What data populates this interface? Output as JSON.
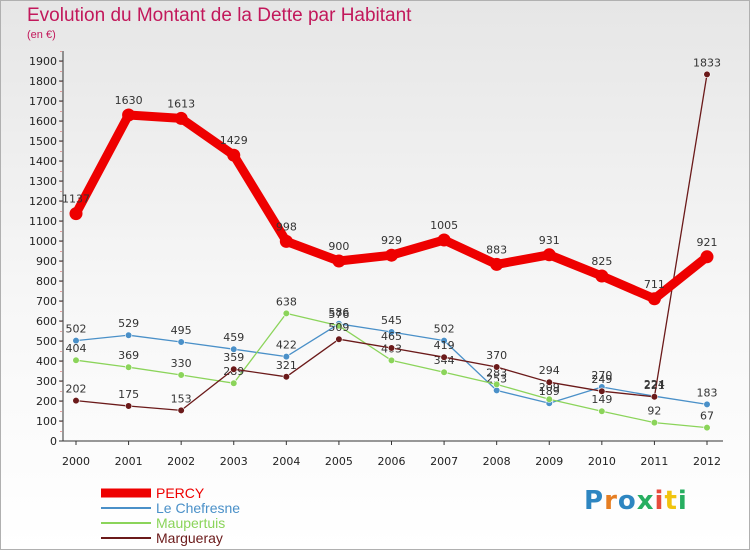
{
  "chart_data": {
    "type": "line",
    "title": "Evolution du Montant de la Dette par Habitant",
    "subtitle": "(en €)",
    "categories": [
      "2000",
      "2001",
      "2002",
      "2003",
      "2004",
      "2005",
      "2006",
      "2007",
      "2008",
      "2009",
      "2010",
      "2011",
      "2012"
    ],
    "ylim": [
      0,
      1900
    ],
    "yticks": [
      0,
      100,
      200,
      300,
      400,
      500,
      600,
      700,
      800,
      900,
      1000,
      1100,
      1200,
      1300,
      1400,
      1500,
      1600,
      1700,
      1800,
      1900
    ],
    "grid": false,
    "legend_position": "bottom-left",
    "series": [
      {
        "name": "PERCY",
        "color": "#ee0000",
        "values": [
          1137,
          1630,
          1613,
          1429,
          998,
          900,
          929,
          1005,
          883,
          931,
          825,
          711,
          921
        ]
      },
      {
        "name": "Le Chefresne",
        "color": "#4a90c8",
        "values": [
          502,
          529,
          495,
          459,
          422,
          586,
          545,
          502,
          253,
          189,
          270,
          224,
          183
        ]
      },
      {
        "name": "Maupertuis",
        "color": "#8bd45a",
        "values": [
          404,
          369,
          330,
          289,
          638,
          576,
          403,
          344,
          283,
          209,
          149,
          92,
          67
        ]
      },
      {
        "name": "Margueray",
        "color": "#6b1a1a",
        "values": [
          202,
          175,
          153,
          359,
          321,
          509,
          465,
          419,
          370,
          294,
          249,
          221,
          1833
        ]
      }
    ]
  },
  "logo": {
    "text": "Proxiti",
    "letters": [
      "P",
      "r",
      "o",
      "x",
      "i",
      "t",
      "i"
    ],
    "colors": [
      "#2e86c1",
      "#e67e22",
      "#2e86c1",
      "#27ae60",
      "#e74c3c",
      "#f1c40f",
      "#27ae60"
    ]
  }
}
